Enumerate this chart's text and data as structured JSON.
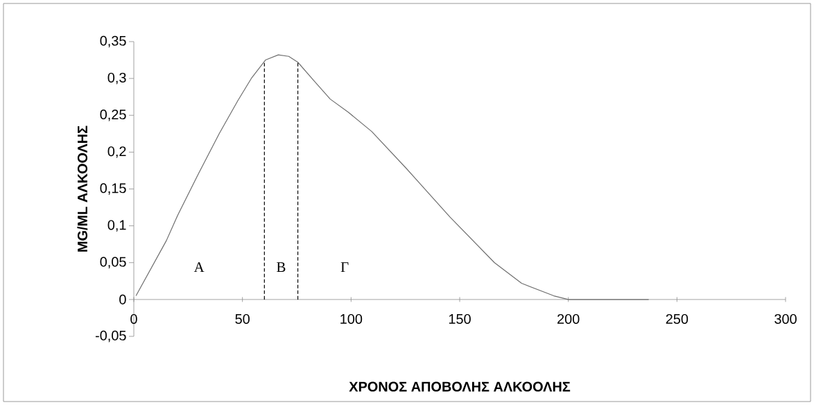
{
  "chart_data": {
    "type": "line",
    "xlabel": "ΧΡΟΝΟΣ ΑΠΟΒΟΛΗΣ ΑΛΚΟΟΛΗΣ",
    "ylabel": "MG/ML ΑΛΚΟΟΛΗΣ",
    "x": [
      1,
      15,
      20.3,
      29.8,
      39.3,
      47.9,
      54.3,
      60.6,
      66.5,
      71.3,
      75.5,
      82.9,
      90.4,
      98.8,
      109.5,
      125.4,
      145.5,
      166,
      178.5,
      193.3,
      200,
      237
    ],
    "series": [
      {
        "color": "#6e6e6e",
        "values": [
          0.005,
          0.08,
          0.115,
          0.171,
          0.225,
          0.27,
          0.301,
          0.325,
          0.332,
          0.33,
          0.322,
          0.297,
          0.272,
          0.254,
          0.228,
          0.178,
          0.112,
          0.05,
          0.022,
          0.005,
          0,
          0
        ]
      }
    ],
    "xlim": [
      0,
      300
    ],
    "ylim": [
      -0.05,
      0.35
    ],
    "xticks": [
      0,
      50,
      100,
      150,
      200,
      250,
      300
    ],
    "yticks": [
      {
        "value": -0.05,
        "label": "-0,05"
      },
      0,
      {
        "value": 0.05,
        "label": "0,05"
      },
      {
        "value": 0.1,
        "label": "0,1"
      },
      {
        "value": 0.15,
        "label": "0,15"
      },
      {
        "value": 0.2,
        "label": "0,2"
      },
      {
        "value": 0.25,
        "label": "0,25"
      },
      {
        "value": 0.3,
        "label": "0,3"
      },
      {
        "value": 0.35,
        "label": "0,35"
      }
    ],
    "ref_lines": [
      {
        "axis": "x",
        "value": 60.1,
        "color": "#000000",
        "line_style": "dashed"
      },
      {
        "axis": "x",
        "value": 75.5,
        "color": "#000000",
        "line_style": "dashed"
      }
    ],
    "annotations": [
      "A",
      "B",
      "Γ"
    ]
  }
}
